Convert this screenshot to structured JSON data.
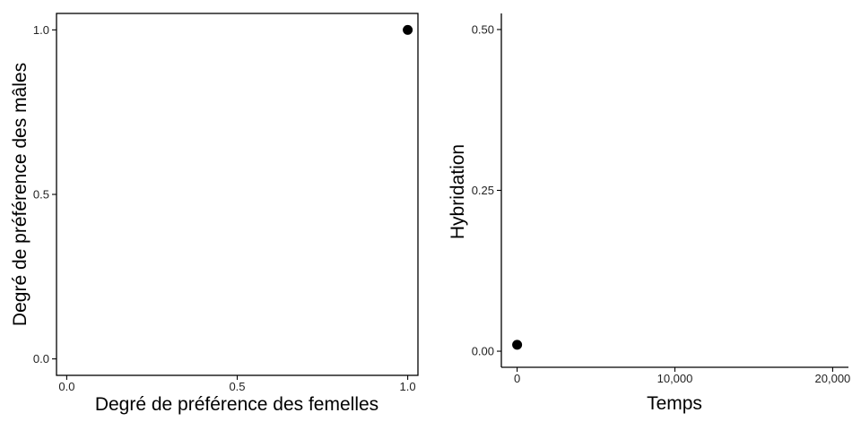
{
  "chart_data": [
    {
      "type": "scatter",
      "xlabel": "Degré de préférence des femelles",
      "ylabel": "Degré de préférence des mâles",
      "xlim": [
        -0.03,
        1.03
      ],
      "ylim": [
        -0.05,
        1.05
      ],
      "x_ticks": [
        {
          "value": 0.0,
          "label": "0.0"
        },
        {
          "value": 0.5,
          "label": "0.5"
        },
        {
          "value": 1.0,
          "label": "1.0"
        }
      ],
      "y_ticks": [
        {
          "value": 0.0,
          "label": "0.0"
        },
        {
          "value": 0.5,
          "label": "0.5"
        },
        {
          "value": 1.0,
          "label": "1.0"
        }
      ],
      "points": [
        {
          "x": 1.0,
          "y": 1.0
        }
      ],
      "grid": false,
      "box": true
    },
    {
      "type": "scatter",
      "xlabel": "Temps",
      "ylabel": "Hybridation",
      "xlim": [
        -1000,
        21000
      ],
      "ylim": [
        -0.025,
        0.525
      ],
      "x_ticks": [
        {
          "value": 0,
          "label": "0"
        },
        {
          "value": 10000,
          "label": "10,000"
        },
        {
          "value": 20000,
          "label": "20,000"
        }
      ],
      "y_ticks": [
        {
          "value": 0.0,
          "label": "0.00"
        },
        {
          "value": 0.25,
          "label": "0.25"
        },
        {
          "value": 0.5,
          "label": "0.50"
        }
      ],
      "points": [
        {
          "x": 0,
          "y": 0.01
        }
      ],
      "grid": false,
      "box": false
    }
  ]
}
